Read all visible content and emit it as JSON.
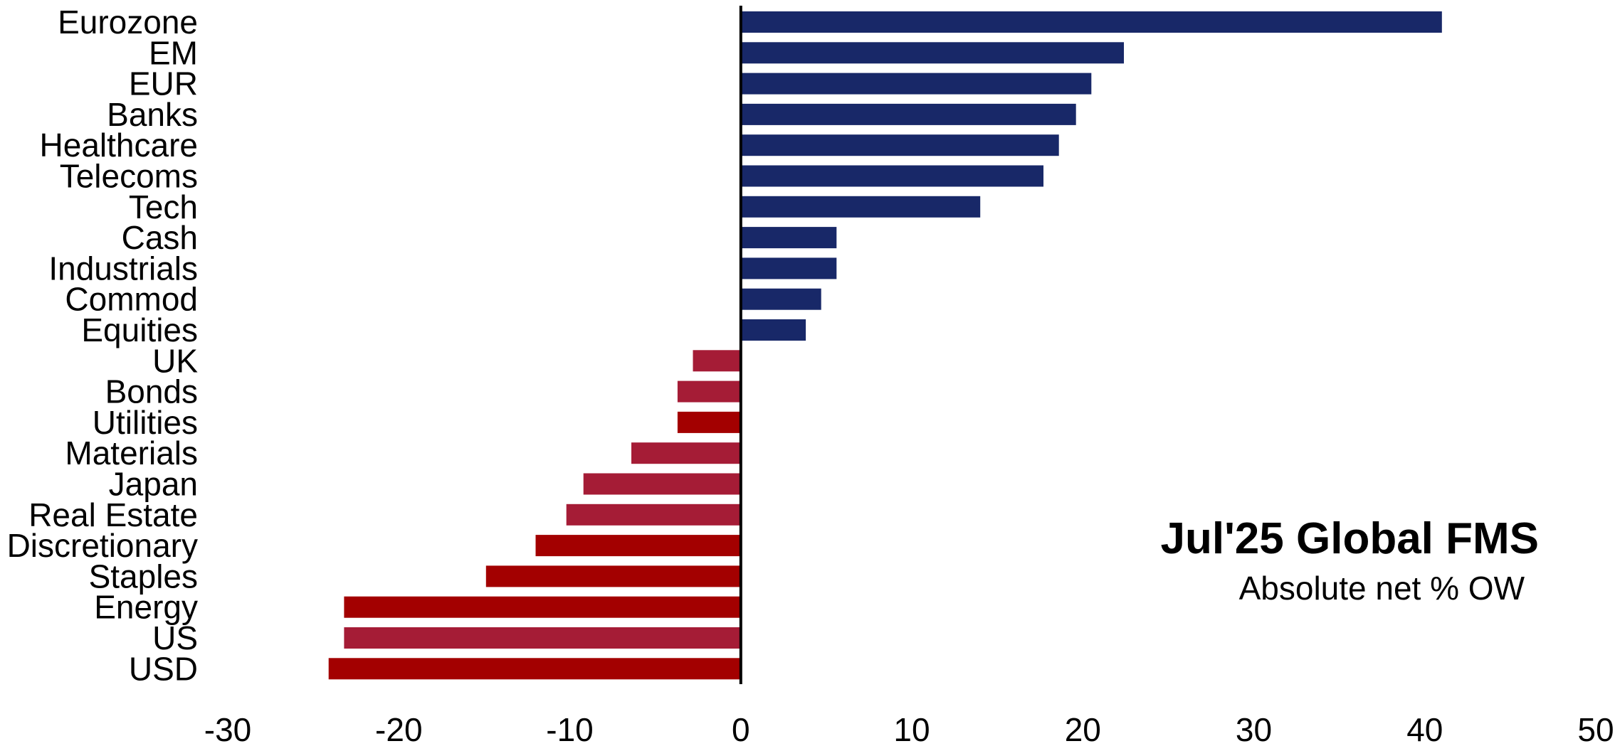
{
  "chart_data": {
    "type": "bar",
    "orientation": "horizontal",
    "title": "Jul'25 Global FMS",
    "subtitle": "Absolute net % OW",
    "xlim": [
      -30,
      50
    ],
    "xticks": [
      -30,
      -20,
      -10,
      0,
      10,
      20,
      30,
      40,
      50
    ],
    "grid": false,
    "legend": "none",
    "colors": {
      "positive": "#182868",
      "negative_red": "#A30000",
      "negative_crimson": "#A51C36"
    },
    "categories": [
      "Eurozone",
      "EM",
      "EUR",
      "Banks",
      "Healthcare",
      "Telecoms",
      "Tech",
      "Cash",
      "Industrials",
      "Commod",
      "Equities",
      "UK",
      "Bonds",
      "Utilities",
      "Materials",
      "Japan",
      "Real Estate",
      "Discretionary",
      "Staples",
      "Energy",
      "US",
      "USD"
    ],
    "values": [
      41,
      22.4,
      20.5,
      19.6,
      18.6,
      17.7,
      14,
      5.6,
      5.6,
      4.7,
      3.8,
      -2.8,
      -3.7,
      -3.7,
      -6.4,
      -9.2,
      -10.2,
      -12,
      -14.9,
      -23.2,
      -23.2,
      -24.1
    ],
    "bar_colors": [
      "#182868",
      "#182868",
      "#182868",
      "#182868",
      "#182868",
      "#182868",
      "#182868",
      "#182868",
      "#182868",
      "#182868",
      "#182868",
      "#A51C36",
      "#A51C36",
      "#A30000",
      "#A51C36",
      "#A51C36",
      "#A51C36",
      "#A30000",
      "#A30000",
      "#A30000",
      "#A51C36",
      "#A30000"
    ]
  }
}
